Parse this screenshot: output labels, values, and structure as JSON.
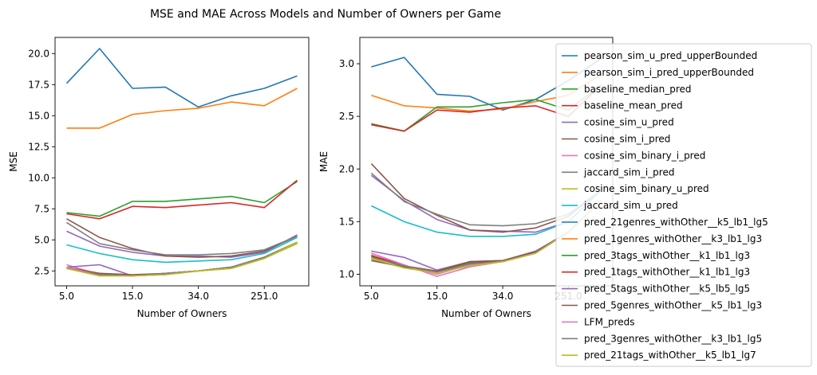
{
  "suptitle": "MSE and MAE Across Models and Number of Owners per Game",
  "legend_placement": "right (overlapping second panel)",
  "chart_data": [
    {
      "type": "line",
      "xlabel": "Number of Owners",
      "ylabel": "MSE",
      "x": [
        0,
        1,
        2,
        3,
        4,
        5,
        6,
        7
      ],
      "xticks": [
        0,
        2,
        4,
        6
      ],
      "xtick_labels": [
        "5.0",
        "15.0",
        "34.0",
        "251.0"
      ],
      "ylim": [
        1.3,
        21.3
      ],
      "yticks": [
        2.5,
        5.0,
        7.5,
        10.0,
        12.5,
        15.0,
        17.5,
        20.0
      ],
      "ytick_labels": [
        "2.5",
        "5.0",
        "7.5",
        "10.0",
        "12.5",
        "15.0",
        "17.5",
        "20.0"
      ],
      "series": [
        {
          "name": "pearson_sim_u_pred_upperBounded",
          "color": "#1f77b4",
          "values": [
            17.6,
            20.4,
            17.2,
            17.3,
            15.7,
            16.6,
            17.2,
            18.2
          ]
        },
        {
          "name": "pearson_sim_i_pred_upperBounded",
          "color": "#ff7f0e",
          "values": [
            14.0,
            14.0,
            15.1,
            15.4,
            15.6,
            16.1,
            15.8,
            17.2
          ]
        },
        {
          "name": "baseline_median_pred",
          "color": "#2ca02c",
          "values": [
            7.2,
            6.9,
            8.1,
            8.1,
            8.3,
            8.5,
            8.0,
            9.7
          ]
        },
        {
          "name": "baseline_mean_pred",
          "color": "#d62728",
          "values": [
            7.1,
            6.7,
            7.7,
            7.6,
            7.8,
            8.0,
            7.6,
            9.8
          ]
        },
        {
          "name": "cosine_sim_u_pred",
          "color": "#9467bd",
          "values": [
            5.7,
            4.5,
            4.0,
            3.7,
            3.7,
            3.6,
            4.0,
            5.4
          ]
        },
        {
          "name": "cosine_sim_i_pred",
          "color": "#8c564b",
          "values": [
            6.7,
            5.2,
            4.3,
            3.7,
            3.6,
            3.7,
            4.1,
            5.3
          ]
        },
        {
          "name": "cosine_sim_binary_i_pred",
          "color": "#e377c2",
          "values": [
            3.0,
            2.2,
            2.1,
            2.3,
            2.5,
            2.8,
            3.6,
            4.8
          ]
        },
        {
          "name": "jaccard_sim_i_pred",
          "color": "#7f7f7f",
          "values": [
            6.4,
            4.7,
            4.2,
            3.8,
            3.8,
            3.9,
            4.2,
            5.3
          ]
        },
        {
          "name": "cosine_sim_binary_u_pred",
          "color": "#bcbd22",
          "values": [
            2.7,
            2.1,
            2.1,
            2.2,
            2.5,
            2.7,
            3.5,
            4.7
          ]
        },
        {
          "name": "jaccard_sim_u_pred",
          "color": "#17becf",
          "values": [
            4.6,
            3.9,
            3.4,
            3.2,
            3.3,
            3.4,
            3.9,
            5.2
          ]
        },
        {
          "name": "pred_21genres_withOther__k5_lb1_lg5",
          "color": "#1f77b4",
          "values": [
            2.7,
            2.2,
            2.1,
            2.3,
            2.5,
            2.8,
            3.6,
            4.8
          ]
        },
        {
          "name": "pred_1genres_withOther__k3_lb1_lg3",
          "color": "#ff7f0e",
          "values": [
            2.8,
            2.2,
            2.1,
            2.3,
            2.5,
            2.8,
            3.6,
            4.8
          ]
        },
        {
          "name": "pred_3tags_withOther__k1_lb1_lg3",
          "color": "#2ca02c",
          "values": [
            2.8,
            2.3,
            2.1,
            2.3,
            2.5,
            2.8,
            3.6,
            4.8
          ]
        },
        {
          "name": "pred_1tags_withOther__k1_lb1_lg3",
          "color": "#d62728",
          "values": [
            2.8,
            2.3,
            2.1,
            2.3,
            2.5,
            2.8,
            3.6,
            4.8
          ]
        },
        {
          "name": "pred_5tags_withOther__k5_lb5_lg5",
          "color": "#9467bd",
          "values": [
            2.8,
            3.0,
            2.1,
            2.3,
            2.5,
            2.8,
            3.6,
            4.8
          ]
        },
        {
          "name": "pred_5genres_withOther__k5_lb1_lg3",
          "color": "#8c564b",
          "values": [
            2.7,
            2.3,
            2.2,
            2.3,
            2.5,
            2.8,
            3.6,
            4.8
          ]
        },
        {
          "name": "LFM_preds",
          "color": "#e377c2",
          "values": [
            2.8,
            2.2,
            2.1,
            2.2,
            2.5,
            2.8,
            3.6,
            4.8
          ]
        },
        {
          "name": "pred_3genres_withOther__k3_lb1_lg5",
          "color": "#7f7f7f",
          "values": [
            2.7,
            2.2,
            2.1,
            2.3,
            2.5,
            2.8,
            3.6,
            4.8
          ]
        },
        {
          "name": "pred_21tags_withOther__k5_lb1_lg7",
          "color": "#bcbd22",
          "values": [
            2.7,
            2.1,
            2.1,
            2.2,
            2.5,
            2.7,
            3.5,
            4.8
          ]
        }
      ]
    },
    {
      "type": "line",
      "xlabel": "Number of Owners",
      "ylabel": "MAE",
      "x": [
        0,
        1,
        2,
        3,
        4,
        5,
        6,
        7
      ],
      "xticks": [
        0,
        2,
        4,
        6
      ],
      "xtick_labels": [
        "5.0",
        "15.0",
        "34.0",
        "251.0"
      ],
      "ylim": [
        0.89,
        3.25
      ],
      "yticks": [
        1.0,
        1.5,
        2.0,
        2.5,
        3.0
      ],
      "ytick_labels": [
        "1.0",
        "1.5",
        "2.0",
        "2.5",
        "3.0"
      ],
      "series": [
        {
          "name": "pearson_sim_u_pred_upperBounded",
          "color": "#1f77b4",
          "values": [
            2.97,
            3.06,
            2.71,
            2.69,
            2.56,
            2.66,
            2.84,
            3.05
          ]
        },
        {
          "name": "pearson_sim_i_pred_upperBounded",
          "color": "#ff7f0e",
          "values": [
            2.7,
            2.6,
            2.58,
            2.55,
            2.57,
            2.64,
            2.7,
            2.9
          ]
        },
        {
          "name": "baseline_median_pred",
          "color": "#2ca02c",
          "values": [
            2.43,
            2.36,
            2.59,
            2.59,
            2.63,
            2.66,
            2.56,
            2.8
          ]
        },
        {
          "name": "baseline_mean_pred",
          "color": "#d62728",
          "values": [
            2.42,
            2.36,
            2.56,
            2.54,
            2.58,
            2.6,
            2.5,
            2.8
          ]
        },
        {
          "name": "cosine_sim_u_pred",
          "color": "#9467bd",
          "values": [
            1.94,
            1.7,
            1.52,
            1.42,
            1.41,
            1.4,
            1.5,
            1.8
          ]
        },
        {
          "name": "cosine_sim_i_pred",
          "color": "#8c564b",
          "values": [
            2.05,
            1.72,
            1.56,
            1.42,
            1.4,
            1.44,
            1.55,
            1.8
          ]
        },
        {
          "name": "cosine_sim_binary_i_pred",
          "color": "#e377c2",
          "values": [
            1.2,
            1.08,
            1.0,
            1.09,
            1.12,
            1.21,
            1.4,
            1.7
          ]
        },
        {
          "name": "jaccard_sim_i_pred",
          "color": "#7f7f7f",
          "values": [
            1.96,
            1.69,
            1.57,
            1.47,
            1.46,
            1.48,
            1.57,
            1.8
          ]
        },
        {
          "name": "cosine_sim_binary_u_pred",
          "color": "#bcbd22",
          "values": [
            1.14,
            1.06,
            1.02,
            1.08,
            1.12,
            1.2,
            1.4,
            1.7
          ]
        },
        {
          "name": "jaccard_sim_u_pred",
          "color": "#17becf",
          "values": [
            1.65,
            1.5,
            1.4,
            1.36,
            1.36,
            1.38,
            1.5,
            1.8
          ]
        },
        {
          "name": "pred_21genres_withOther__k5_lb1_lg5",
          "color": "#1f77b4",
          "values": [
            1.17,
            1.07,
            1.02,
            1.1,
            1.12,
            1.2,
            1.4,
            1.7
          ]
        },
        {
          "name": "pred_1genres_withOther__k3_lb1_lg3",
          "color": "#ff7f0e",
          "values": [
            1.18,
            1.08,
            1.03,
            1.1,
            1.12,
            1.21,
            1.4,
            1.7
          ]
        },
        {
          "name": "pred_3tags_withOther__k1_lb1_lg3",
          "color": "#2ca02c",
          "values": [
            1.17,
            1.08,
            1.02,
            1.11,
            1.12,
            1.21,
            1.4,
            1.7
          ]
        },
        {
          "name": "pred_1tags_withOther__k1_lb1_lg3",
          "color": "#d62728",
          "values": [
            1.18,
            1.08,
            1.03,
            1.1,
            1.13,
            1.21,
            1.4,
            1.7
          ]
        },
        {
          "name": "pred_5tags_withOther__k5_lb5_lg5",
          "color": "#9467bd",
          "values": [
            1.22,
            1.16,
            1.04,
            1.12,
            1.13,
            1.22,
            1.4,
            1.7
          ]
        },
        {
          "name": "pred_5genres_withOther__k5_lb1_lg3",
          "color": "#8c564b",
          "values": [
            1.13,
            1.07,
            1.03,
            1.12,
            1.13,
            1.21,
            1.4,
            1.7
          ]
        },
        {
          "name": "LFM_preds",
          "color": "#e377c2",
          "values": [
            1.2,
            1.09,
            0.98,
            1.07,
            1.12,
            1.2,
            1.4,
            1.7
          ]
        },
        {
          "name": "pred_3genres_withOther__k3_lb1_lg5",
          "color": "#7f7f7f",
          "values": [
            1.16,
            1.08,
            1.02,
            1.1,
            1.12,
            1.2,
            1.4,
            1.7
          ]
        },
        {
          "name": "pred_21tags_withOther__k5_lb1_lg7",
          "color": "#bcbd22",
          "values": [
            1.15,
            1.06,
            1.01,
            1.08,
            1.12,
            1.2,
            1.4,
            1.7
          ]
        }
      ]
    }
  ]
}
